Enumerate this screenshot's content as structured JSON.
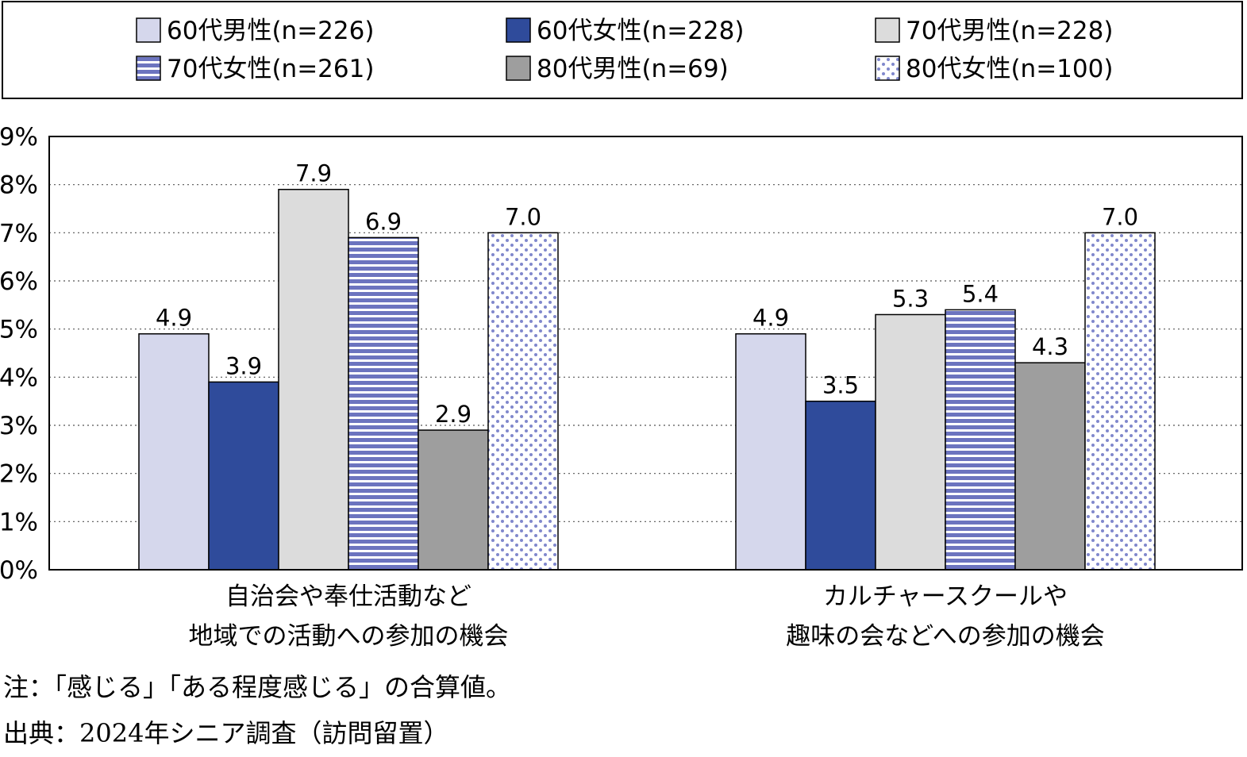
{
  "chart_data": {
    "type": "bar",
    "categories": [
      [
        "自治会や奉仕活動など",
        "地域での活動への参加の機会"
      ],
      [
        "カルチャースクールや",
        "趣味の会などへの参加の機会"
      ]
    ],
    "series": [
      {
        "name": "60代男性(n=226)",
        "values": [
          4.9,
          4.9
        ],
        "labels": [
          "4.9",
          "4.9"
        ],
        "fill": "solid",
        "color": "#d5d7ec"
      },
      {
        "name": "60代女性(n=228)",
        "values": [
          3.9,
          3.5
        ],
        "labels": [
          "3.9",
          "3.5"
        ],
        "fill": "solid",
        "color": "#2f4b9b"
      },
      {
        "name": "70代男性(n=228)",
        "values": [
          7.9,
          5.3
        ],
        "labels": [
          "7.9",
          "5.3"
        ],
        "fill": "solid",
        "color": "#dcdcdc"
      },
      {
        "name": "70代女性(n=261)",
        "values": [
          6.9,
          5.4
        ],
        "labels": [
          "6.9",
          "5.4"
        ],
        "fill": "stripes",
        "color": "#6c74bf"
      },
      {
        "name": "80代男性(n=69)",
        "values": [
          2.9,
          4.3
        ],
        "labels": [
          "2.9",
          "4.3"
        ],
        "fill": "solid",
        "color": "#9e9e9e"
      },
      {
        "name": "80代女性(n=100)",
        "values": [
          7.0,
          7.0
        ],
        "labels": [
          "7.0",
          "7.0"
        ],
        "fill": "dots",
        "color": "#8088cc"
      }
    ],
    "yticks": [
      "0%",
      "1%",
      "2%",
      "3%",
      "4%",
      "5%",
      "6%",
      "7%",
      "8%",
      "9%"
    ],
    "ylim": [
      0,
      9
    ],
    "grid": "horizontal-dotted",
    "legend": "top"
  },
  "notes": [
    "注：「感じる」「ある程度感じる」の合算値。",
    "出典：2024年シニア調査（訪問留置）"
  ]
}
